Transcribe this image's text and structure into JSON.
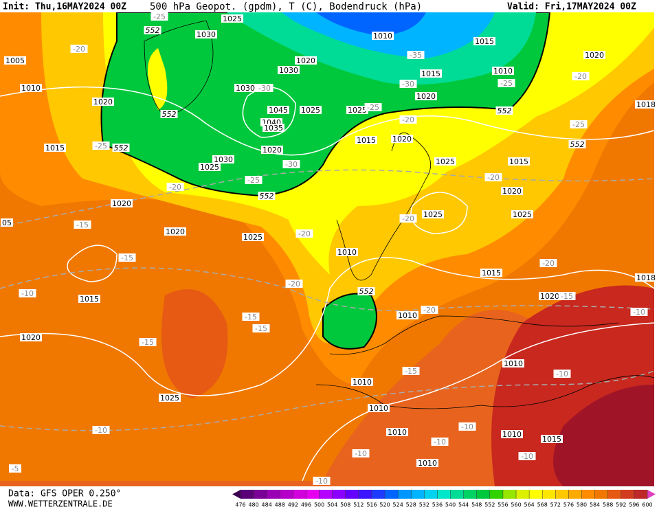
{
  "header": {
    "init": "Init: Thu,16MAY2024 00Z",
    "title": "500 hPa Geopot. (gpdm), T (C), Bodendruck (hPa)",
    "valid": "Valid: Fri,17MAY2024 00Z"
  },
  "isobar_labels": [
    "1025",
    "1030",
    "1010",
    "1015",
    "1020",
    "1005",
    "1010",
    "1020",
    "1030",
    "1015",
    "1010",
    "1030",
    "1020",
    "1020",
    "1045",
    "1025",
    "1025",
    "1040",
    "1035",
    "1015",
    "1015",
    "1020",
    "1020",
    "1030",
    "1025",
    "1025",
    "1015",
    "1020",
    "1020",
    "1025",
    "1025",
    "1020",
    "1025",
    "1010",
    "1015",
    "1015",
    "1020",
    "1010",
    "1020",
    "1010",
    "1010",
    "1025",
    "1010",
    "1010",
    "1010",
    "1015",
    "1010",
    "1018",
    "1018",
    "05"
  ],
  "temperature_labels": [
    "-25",
    "-20",
    "-35",
    "-30",
    "-25",
    "-20",
    "-25",
    "-30",
    "-25",
    "-30",
    "-25",
    "-20",
    "-20",
    "-25",
    "-20",
    "-15",
    "-20",
    "-20",
    "-15",
    "-20",
    "-10",
    "-20",
    "-15",
    "-10",
    "-15",
    "-15",
    "-20",
    "-15",
    "-15",
    "-10",
    "-10",
    "-10",
    "-10",
    "-10",
    "-10",
    "-5",
    "-10"
  ],
  "height_labels": [
    "552",
    "552",
    "552",
    "552",
    "552",
    "552",
    "552"
  ],
  "footer": {
    "data": "Data: GFS OPER 0.250°",
    "site": "WWW.WETTERZENTRALE.DE"
  },
  "colorbar": {
    "ticks": [
      476,
      480,
      484,
      488,
      492,
      496,
      500,
      504,
      508,
      512,
      516,
      520,
      524,
      528,
      532,
      536,
      540,
      544,
      548,
      552,
      556,
      560,
      564,
      568,
      572,
      576,
      580,
      584,
      588,
      592,
      596,
      600
    ],
    "colors": [
      "#3c0050",
      "#5a0078",
      "#7a0096",
      "#9a00b4",
      "#b400c8",
      "#d200dc",
      "#e600f0",
      "#b400ff",
      "#8c00ff",
      "#6400ff",
      "#3c14ff",
      "#1e3cff",
      "#0064ff",
      "#0096ff",
      "#00b4ff",
      "#00d2f0",
      "#00e6c8",
      "#00dc96",
      "#00d264",
      "#00c83c",
      "#32d200",
      "#96e600",
      "#dcf000",
      "#ffff00",
      "#ffe600",
      "#ffc800",
      "#ffaa00",
      "#ff8c00",
      "#f07800",
      "#e65a14",
      "#d23c1e",
      "#be2828",
      "#e040c0"
    ]
  }
}
